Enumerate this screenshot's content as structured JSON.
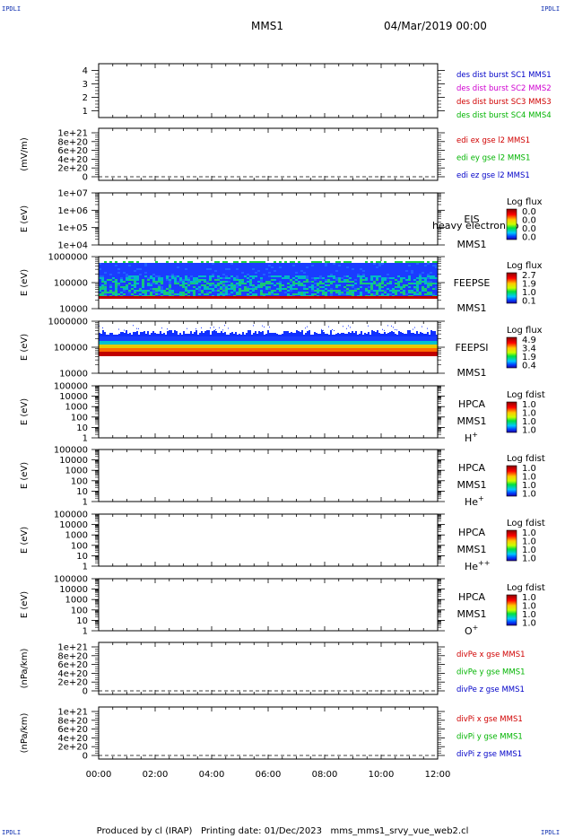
{
  "header": {
    "left": "MMS1",
    "right": "04/Mar/2019 00:00"
  },
  "corner_label": "IPDLI",
  "footer": {
    "producer": "Produced by cl (IRAP)",
    "printing": "Printing date: 01/Dec/2023",
    "file": "mms_mms1_srvy_vue_web2.cl"
  },
  "colors": {
    "blue": "#0000c8",
    "magenta": "#d000d0",
    "red": "#d00000",
    "green": "#00b400",
    "corner": "#1030b0"
  },
  "chart_data": [
    {
      "type": "line",
      "name": "des-dist",
      "ylim": [
        0.5,
        4.5
      ],
      "ticks": [
        "1",
        "2",
        "3",
        "4"
      ],
      "legend": [
        {
          "text": "des dist burst SC1 MMS1",
          "color": "blue"
        },
        {
          "text": "des dist burst SC2 MMS2",
          "color": "magenta"
        },
        {
          "text": "des dist burst SC3 MMS3",
          "color": "red"
        },
        {
          "text": "des dist burst SC4 MMS4",
          "color": "green"
        }
      ]
    },
    {
      "type": "line",
      "name": "edi-e",
      "ylabel": "(mV/m)",
      "ticks": [
        "0",
        "2e+20",
        "4e+20",
        "6e+20",
        "8e+20",
        "1e+21"
      ],
      "zero_line": true,
      "legend": [
        {
          "text": "edi ex gse l2 MMS1",
          "color": "red"
        },
        {
          "text": "edi ey gse l2 MMS1",
          "color": "green"
        },
        {
          "text": "edi ez gse l2 MMS1",
          "color": "blue"
        }
      ]
    },
    {
      "type": "heatmap",
      "name": "eis",
      "ylabel": "E (eV)",
      "ticks": [
        "1e+04",
        "1e+05",
        "1e+06",
        "1e+07"
      ],
      "labels": [
        "EIS",
        "MMS1"
      ],
      "overlay": "heavy electron to",
      "colorbar": {
        "title": "Log flux",
        "values": [
          "0.0",
          "0.0",
          "0.0",
          "0.0"
        ]
      }
    },
    {
      "type": "heatmap",
      "name": "feepse",
      "ylabel": "E (eV)",
      "ticks": [
        "10000",
        "100000",
        "1000000"
      ],
      "labels": [
        "FEEPSE",
        "MMS1"
      ],
      "colorbar": {
        "title": "Log flux",
        "values": [
          "2.7",
          "1.9",
          "1.0",
          "0.1"
        ]
      }
    },
    {
      "type": "heatmap",
      "name": "feepsi",
      "ylabel": "E (eV)",
      "ticks": [
        "10000",
        "100000",
        "1000000"
      ],
      "labels": [
        "FEEPSI",
        "MMS1"
      ],
      "colorbar": {
        "title": "Log flux",
        "values": [
          "4.9",
          "3.4",
          "1.9",
          "0.4"
        ]
      }
    },
    {
      "type": "heatmap",
      "name": "hpca-h",
      "ylabel": "E (eV)",
      "ticks": [
        "1",
        "10",
        "100",
        "1000",
        "10000",
        "100000"
      ],
      "labels": [
        "HPCA",
        "MMS1"
      ],
      "species": "H",
      "species_sup": "+",
      "colorbar": {
        "title": "Log fdist",
        "values": [
          "1.0",
          "1.0",
          "1.0",
          "1.0"
        ]
      }
    },
    {
      "type": "heatmap",
      "name": "hpca-he",
      "ylabel": "E (eV)",
      "ticks": [
        "1",
        "10",
        "100",
        "1000",
        "10000",
        "100000"
      ],
      "labels": [
        "HPCA",
        "MMS1"
      ],
      "species": "He",
      "species_sup": "+",
      "colorbar": {
        "title": "Log fdist",
        "values": [
          "1.0",
          "1.0",
          "1.0",
          "1.0"
        ]
      }
    },
    {
      "type": "heatmap",
      "name": "hpca-hepp",
      "ylabel": "E (eV)",
      "ticks": [
        "1",
        "10",
        "100",
        "1000",
        "10000",
        "100000"
      ],
      "labels": [
        "HPCA",
        "MMS1"
      ],
      "species": "He",
      "species_sup": "++",
      "colorbar": {
        "title": "Log fdist",
        "values": [
          "1.0",
          "1.0",
          "1.0",
          "1.0"
        ]
      }
    },
    {
      "type": "heatmap",
      "name": "hpca-o",
      "ylabel": "E (eV)",
      "ticks": [
        "1",
        "10",
        "100",
        "1000",
        "10000",
        "100000"
      ],
      "labels": [
        "HPCA",
        "MMS1"
      ],
      "species": "O",
      "species_sup": "+",
      "colorbar": {
        "title": "Log fdist",
        "values": [
          "1.0",
          "1.0",
          "1.0",
          "1.0"
        ]
      }
    },
    {
      "type": "line",
      "name": "divpe",
      "ylabel": "(nPa/km)",
      "ticks": [
        "0",
        "2e+20",
        "4e+20",
        "6e+20",
        "8e+20",
        "1e+21"
      ],
      "zero_line": true,
      "legend": [
        {
          "text": "divPe x gse MMS1",
          "color": "red"
        },
        {
          "text": "divPe y gse MMS1",
          "color": "green"
        },
        {
          "text": "divPe z gse MMS1",
          "color": "blue"
        }
      ]
    },
    {
      "type": "line",
      "name": "divpi",
      "ylabel": "(nPa/km)",
      "ticks": [
        "0",
        "2e+20",
        "4e+20",
        "6e+20",
        "8e+20",
        "1e+21"
      ],
      "zero_line": true,
      "legend": [
        {
          "text": "divPi x gse MMS1",
          "color": "red"
        },
        {
          "text": "divPi y gse MMS1",
          "color": "green"
        },
        {
          "text": "divPi z gse MMS1",
          "color": "blue"
        }
      ]
    }
  ],
  "x_axis": {
    "ticks": [
      "00:00",
      "02:00",
      "04:00",
      "06:00",
      "08:00",
      "10:00",
      "12:00"
    ]
  }
}
